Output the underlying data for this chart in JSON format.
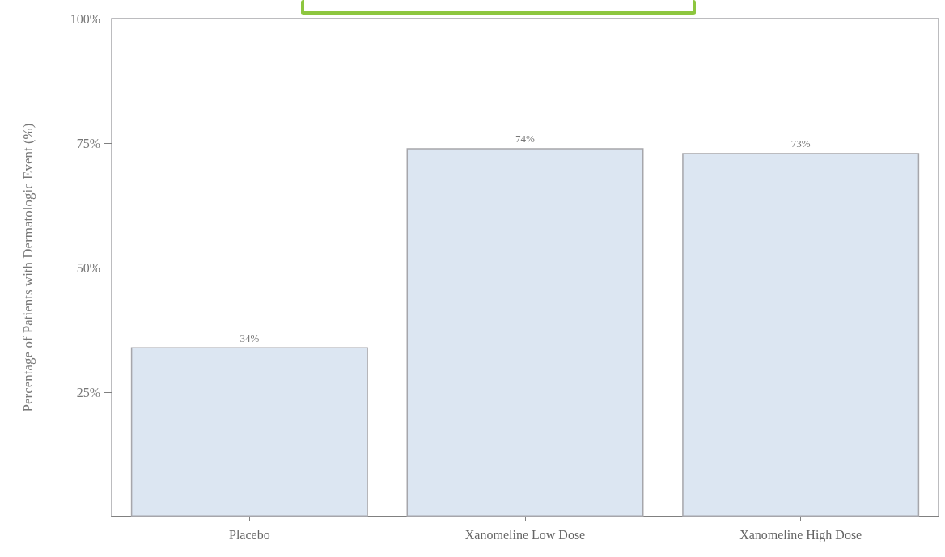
{
  "chart_data": {
    "type": "bar",
    "ylabel": "Percentage of Patients with Dermatologic Event (%)",
    "categories": [
      "Placebo",
      "Xanomeline Low Dose",
      "Xanomeline High Dose"
    ],
    "values": [
      34,
      74,
      73
    ],
    "color": "#dce6f2",
    "value_labels": [
      "34%",
      "74%",
      "73%"
    ],
    "ylim": [
      0,
      100
    ],
    "yticks": [
      {
        "value": 0,
        "label": null
      },
      {
        "value": 25,
        "label": "25%"
      },
      {
        "value": 50,
        "label": "50%"
      },
      {
        "value": 75,
        "label": "75%"
      },
      {
        "value": 100,
        "label": "100%"
      }
    ],
    "grid": false
  }
}
